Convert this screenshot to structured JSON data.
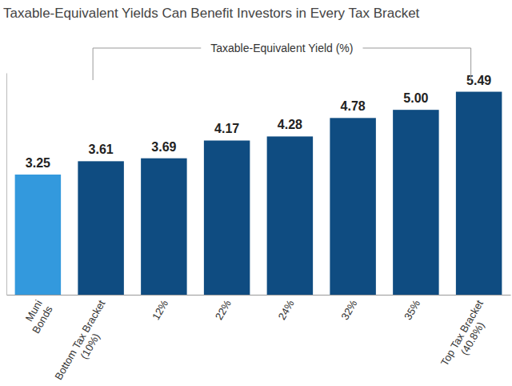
{
  "chart_data": {
    "type": "bar",
    "title": "Taxable-Equivalent Yields Can Benefit Investors in Every Tax Bracket",
    "annotation": "Taxable-Equivalent Yield (%)",
    "categories": [
      "Muni Bonds",
      "Bottom Tax Bracket (10%)",
      "12%",
      "22%",
      "24%",
      "32%",
      "35%",
      "Top Tax Bracket (40.8%)"
    ],
    "values": [
      3.25,
      3.61,
      3.69,
      4.17,
      4.28,
      4.78,
      5.0,
      5.49
    ],
    "value_labels": [
      "3.25",
      "3.61",
      "3.69",
      "4.17",
      "4.28",
      "4.78",
      "5.00",
      "5.49"
    ],
    "colors": [
      "#3399dd",
      "#0f4c81",
      "#0f4c81",
      "#0f4c81",
      "#0f4c81",
      "#0f4c81",
      "#0f4c81",
      "#0f4c81"
    ],
    "ylim": [
      0,
      6
    ],
    "data_labels": true,
    "tick_labels": "x",
    "grid": false
  }
}
